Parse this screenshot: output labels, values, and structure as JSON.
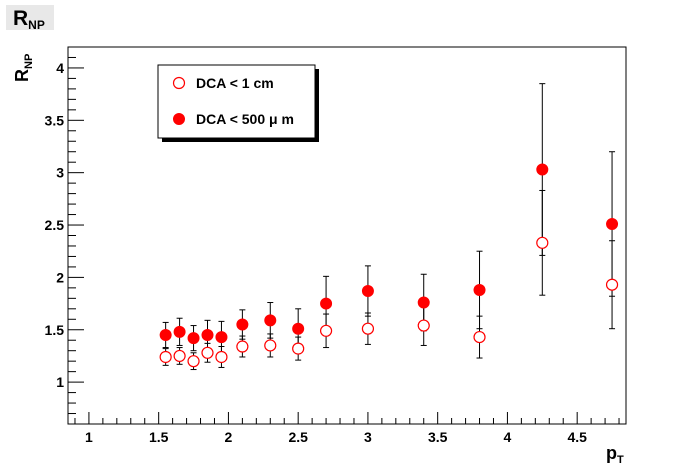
{
  "chart_data": {
    "type": "scatter",
    "title": "R",
    "title_sub": "NP",
    "xlabel": "p",
    "xlabel_sub": "T",
    "ylabel": "R",
    "ylabel_sub": "NP",
    "xlim": [
      0.85,
      4.85
    ],
    "ylim": [
      0.6,
      4.2
    ],
    "x_ticks": [
      1,
      1.5,
      2,
      2.5,
      3,
      3.5,
      4,
      4.5
    ],
    "x_tick_labels": [
      "1",
      "1.5",
      "2",
      "2.5",
      "3",
      "3.5",
      "4",
      "4.5"
    ],
    "y_ticks": [
      1,
      1.5,
      2,
      2.5,
      3,
      3.5,
      4
    ],
    "y_tick_labels": [
      "1",
      "1.5",
      "2",
      "2.5",
      "3",
      "3.5",
      "4"
    ],
    "grid": false,
    "legend_position": "top-left",
    "series": [
      {
        "name": "DCA < 1 cm",
        "marker": "open-circle",
        "color": "#ff0000",
        "x": [
          1.55,
          1.65,
          1.75,
          1.85,
          1.95,
          2.1,
          2.3,
          2.5,
          2.7,
          3.0,
          3.4,
          3.8,
          4.25,
          4.75
        ],
        "y": [
          1.24,
          1.25,
          1.2,
          1.28,
          1.24,
          1.34,
          1.35,
          1.32,
          1.49,
          1.51,
          1.54,
          1.43,
          2.33,
          1.93
        ],
        "err": [
          0.08,
          0.08,
          0.08,
          0.09,
          0.1,
          0.1,
          0.11,
          0.11,
          0.16,
          0.15,
          0.19,
          0.2,
          0.5,
          0.42
        ]
      },
      {
        "name": "DCA < 500 μ m",
        "marker": "filled-circle",
        "color": "#ff0000",
        "x": [
          1.55,
          1.65,
          1.75,
          1.85,
          1.95,
          2.1,
          2.3,
          2.5,
          2.7,
          3.0,
          3.4,
          3.8,
          4.25,
          4.75
        ],
        "y": [
          1.45,
          1.48,
          1.42,
          1.45,
          1.43,
          1.55,
          1.59,
          1.51,
          1.75,
          1.87,
          1.76,
          1.88,
          3.03,
          2.51
        ],
        "err": [
          0.12,
          0.13,
          0.12,
          0.14,
          0.15,
          0.14,
          0.17,
          0.19,
          0.26,
          0.24,
          0.27,
          0.37,
          0.82,
          0.69
        ]
      }
    ]
  }
}
